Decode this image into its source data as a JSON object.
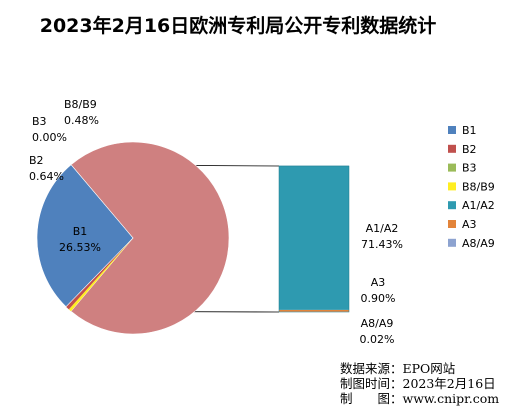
{
  "chart_data": {
    "type": "pie",
    "title": "2023年2月16日欧洲专利局公开专利数据统计",
    "slices": [
      {
        "name": "B1",
        "label": "B1",
        "value_label": "26.53%",
        "value": 26.53,
        "color": "#4F81BD"
      },
      {
        "name": "B2",
        "label": "B2",
        "value_label": "0.64%",
        "value": 0.64,
        "color": "#C0504D"
      },
      {
        "name": "B3",
        "label": "B3",
        "value_label": "0.00%",
        "value": 0.0,
        "color": "#9BBB59"
      },
      {
        "name": "B8/B9",
        "label": "B8/B9",
        "value_label": "0.48%",
        "value": 0.48,
        "color": "#FFEE22"
      },
      {
        "name": "A1/A2",
        "label": "A1/A2",
        "value_label": "71.43%",
        "value": 71.43,
        "color": "#2E9AB0"
      },
      {
        "name": "A3",
        "label": "A3",
        "value_label": "0.90%",
        "value": 0.9,
        "color": "#E3843A"
      },
      {
        "name": "A8/A9",
        "label": "A8/A9",
        "value_label": "0.02%",
        "value": 0.02,
        "color": "#8DA3D0"
      }
    ],
    "pie_part": [
      "B1",
      "B2",
      "B3",
      "B8/B9"
    ],
    "bar_part": [
      "A1/A2",
      "A3",
      "A8/A9"
    ],
    "pie_other_color": "#CF8080",
    "legend_position": "right"
  },
  "source": {
    "line1": "数据来源：EPO网站",
    "line2": "制图时间：2023年2月16日",
    "line3": "制　　图：www.cnipr.com"
  }
}
